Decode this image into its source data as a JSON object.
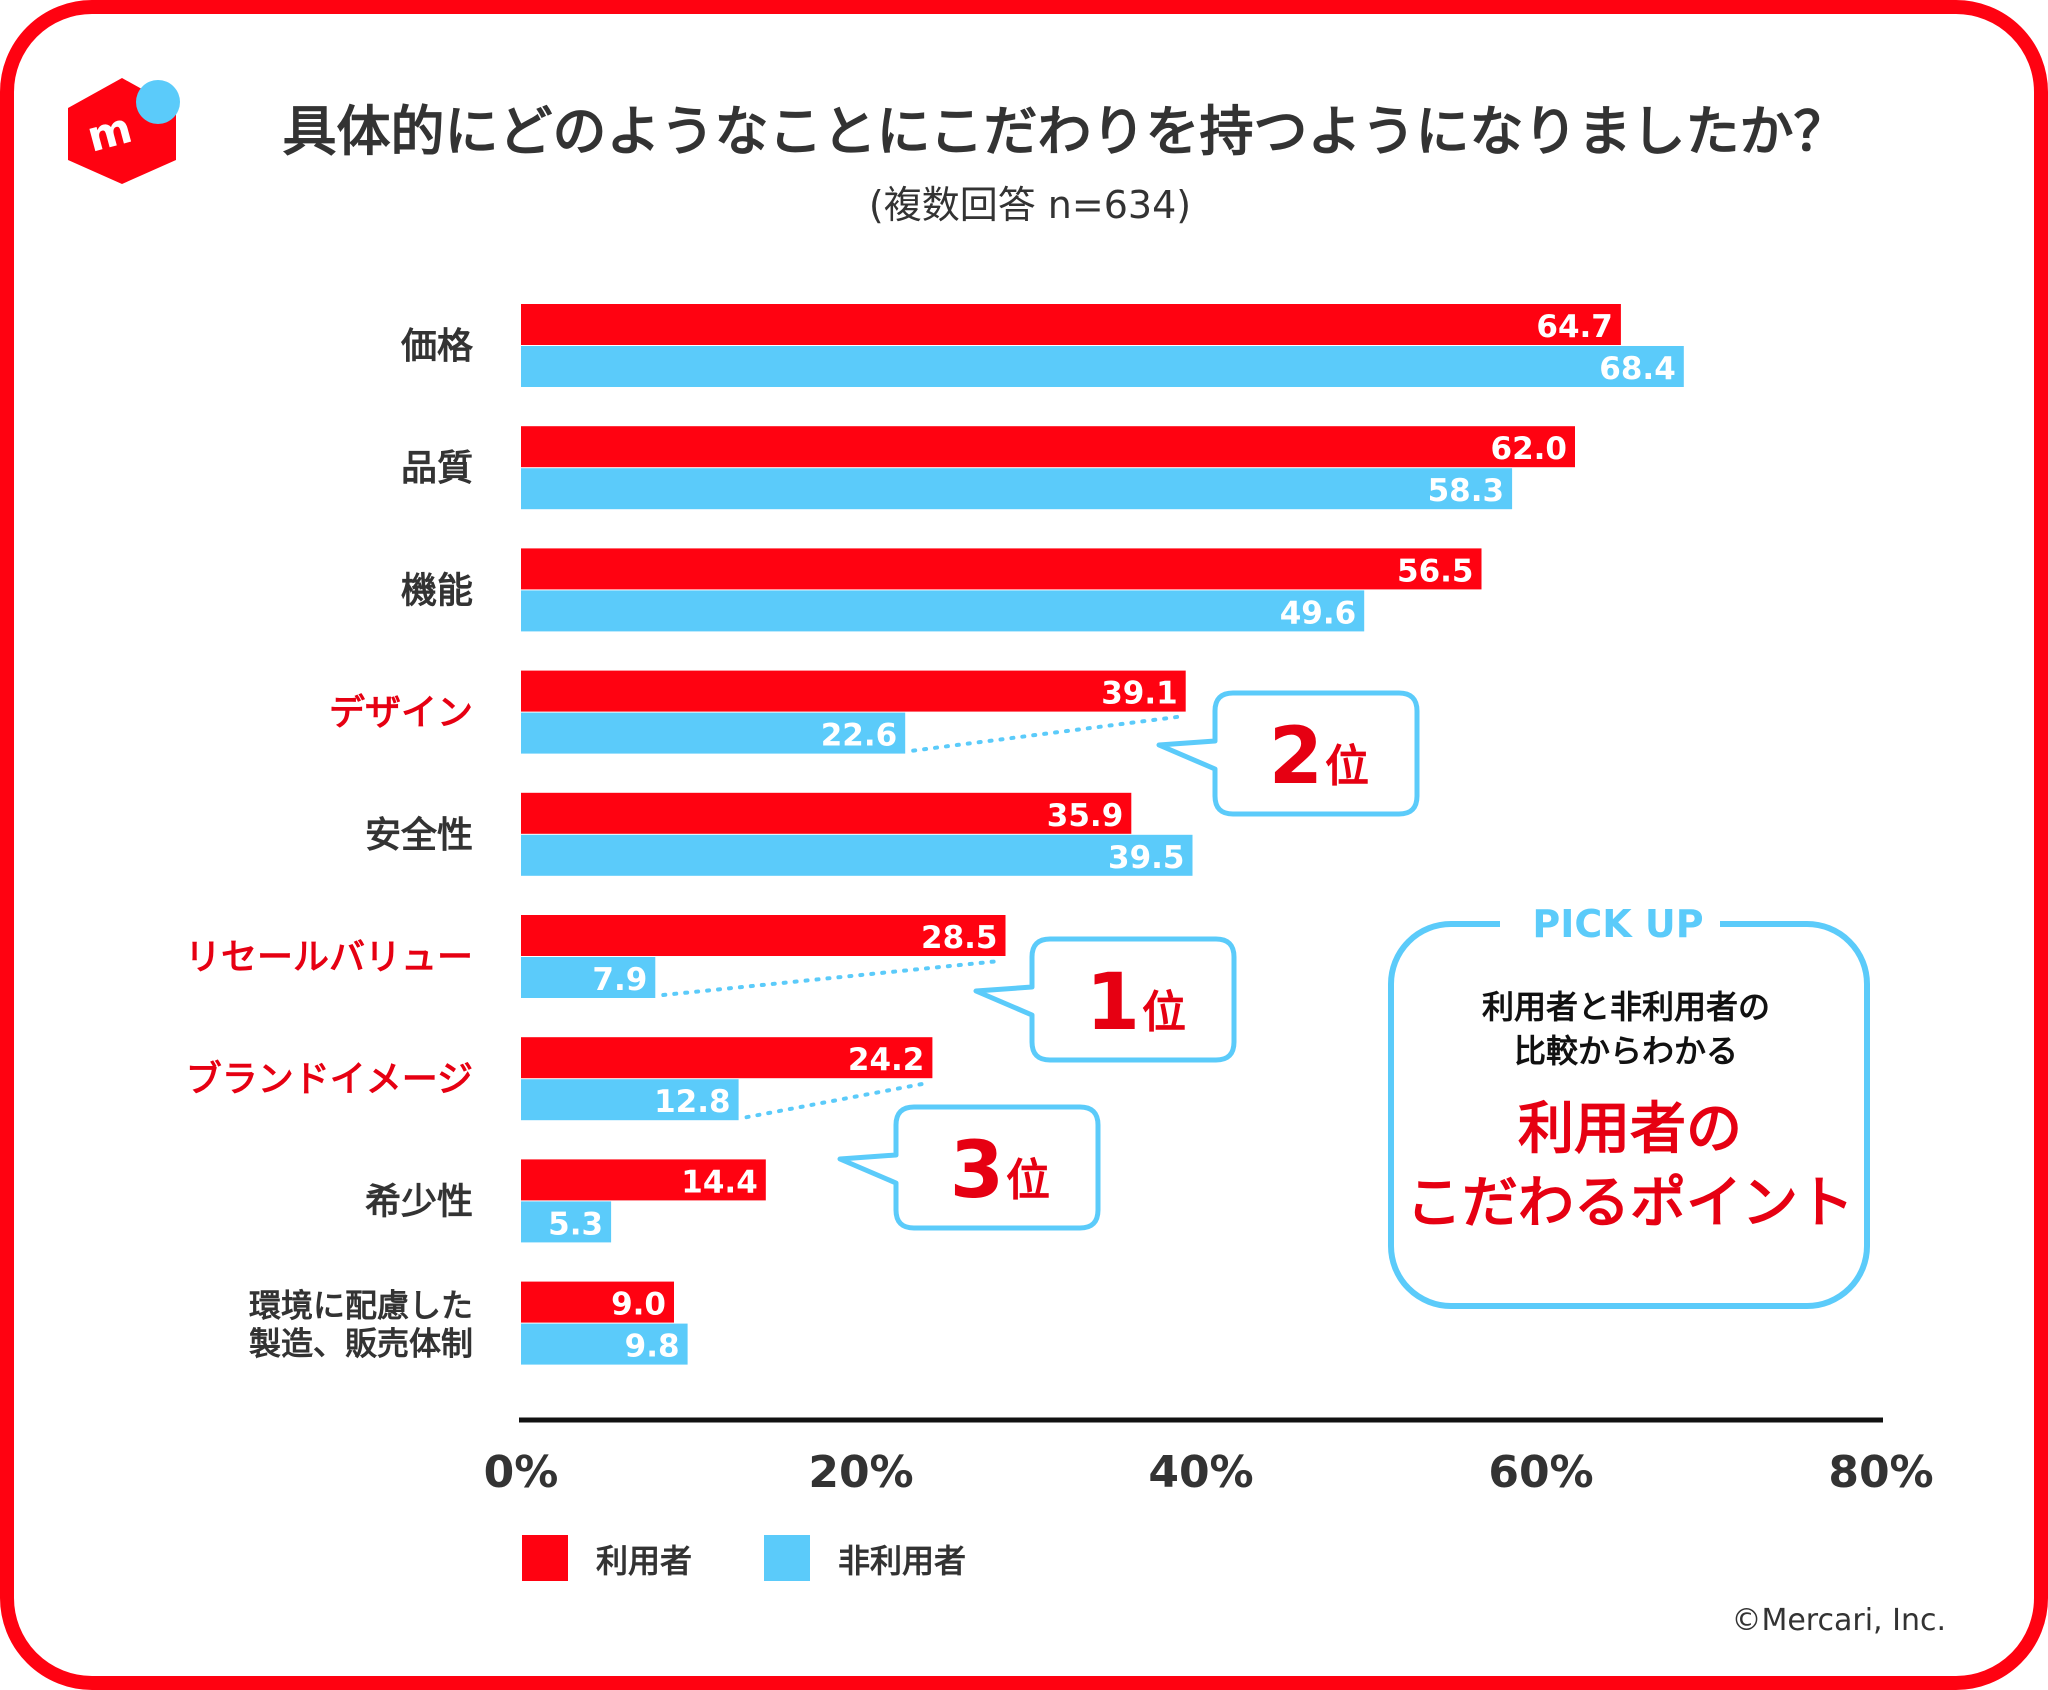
{
  "colors": {
    "user": "#ff0211",
    "non_user": "#5bcbfa",
    "frame": "#ff0211",
    "text": "#333333",
    "highlight": "#e60012"
  },
  "logo": {
    "icon": "mercari-logo-icon"
  },
  "chart_data": {
    "type": "bar",
    "orientation": "horizontal",
    "title": "具体的にどのようなことにこだわりを持つようになりましたか？",
    "subtitle": "(複数回答 n=634)",
    "categories": [
      "価格",
      "品質",
      "機能",
      "デザイン",
      "安全性",
      "リセールバリュー",
      "ブランドイメージ",
      "希少性",
      "環境に配慮した\n製造、販売体制"
    ],
    "highlighted_categories": [
      "デザイン",
      "リセールバリュー",
      "ブランドイメージ"
    ],
    "series": [
      {
        "name": "利用者",
        "values": [
          64.7,
          62.0,
          56.5,
          39.1,
          35.9,
          28.5,
          24.2,
          14.4,
          9.0
        ]
      },
      {
        "name": "非利用者",
        "values": [
          68.4,
          58.3,
          49.6,
          22.6,
          39.5,
          7.9,
          12.8,
          5.3,
          9.8
        ]
      }
    ],
    "value_labels": [
      [
        "64.7",
        "62.0",
        "56.5",
        "39.1",
        "35.9",
        "28.5",
        "24.2",
        "14.4",
        "9.0"
      ],
      [
        "68.4",
        "58.3",
        "49.6",
        "22.6",
        "39.5",
        "7.9",
        "12.8",
        "5.3",
        "9.8"
      ]
    ],
    "xlim": [
      0,
      80
    ],
    "xticks": [
      "0%",
      "20%",
      "40%",
      "60%",
      "80%"
    ],
    "xtick_values": [
      0,
      20,
      40,
      60,
      80
    ],
    "grid": false,
    "legend_position": "bottom-left",
    "annotations": [
      {
        "category": "リセールバリュー",
        "rank_number": "1",
        "rank_suffix": "位"
      },
      {
        "category": "デザイン",
        "rank_number": "2",
        "rank_suffix": "位"
      },
      {
        "category": "ブランドイメージ",
        "rank_number": "3",
        "rank_suffix": "位"
      }
    ]
  },
  "pickup": {
    "heading": "PICK UP",
    "line1": "利用者と非利用者の",
    "line2": "比較からわかる",
    "emph1": "利用者の",
    "emph2": "こだわるポイント"
  },
  "copyright": "©Mercari, Inc."
}
